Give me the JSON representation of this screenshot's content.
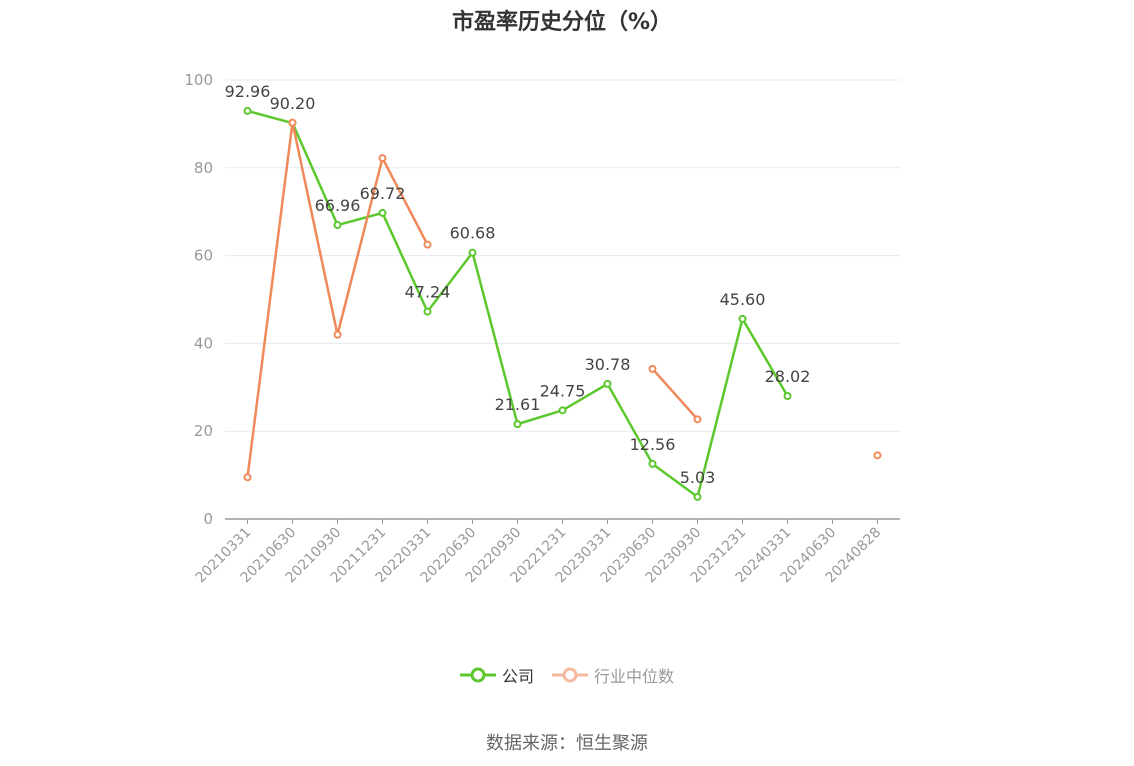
{
  "chart_data": {
    "type": "line",
    "title": "市盈率历史分位（%）",
    "xlabel": "",
    "ylabel": "",
    "ylim": [
      0,
      100
    ],
    "yticks": [
      0,
      20,
      40,
      60,
      80,
      100
    ],
    "grid": true,
    "legend_position": "bottom",
    "categories": [
      "20210331",
      "20210630",
      "20210930",
      "20211231",
      "20220331",
      "20220630",
      "20220930",
      "20221231",
      "20230331",
      "20230630",
      "20230930",
      "20231231",
      "20240331",
      "20240630",
      "20240828"
    ],
    "series": [
      {
        "name": "公司",
        "color": "#5cc82e",
        "values": [
          92.96,
          90.2,
          66.96,
          69.72,
          47.24,
          60.68,
          21.61,
          24.75,
          30.78,
          12.56,
          5.03,
          45.6,
          28.02,
          null,
          null
        ],
        "labels": [
          "92.96",
          "90.20",
          "66.96",
          "69.72",
          "47.24",
          "60.68",
          "21.61",
          "24.75",
          "30.78",
          "12.56",
          "5.03",
          "45.60",
          "28.02",
          null,
          null
        ]
      },
      {
        "name": "行业中位数",
        "color": "#f0895a",
        "legend_color": "#f5b9a0",
        "values": [
          9.5,
          90.3,
          42.0,
          82.2,
          62.5,
          null,
          null,
          null,
          null,
          34.2,
          22.7,
          null,
          null,
          null,
          14.5
        ]
      }
    ]
  },
  "source": "数据来源：恒生聚源"
}
